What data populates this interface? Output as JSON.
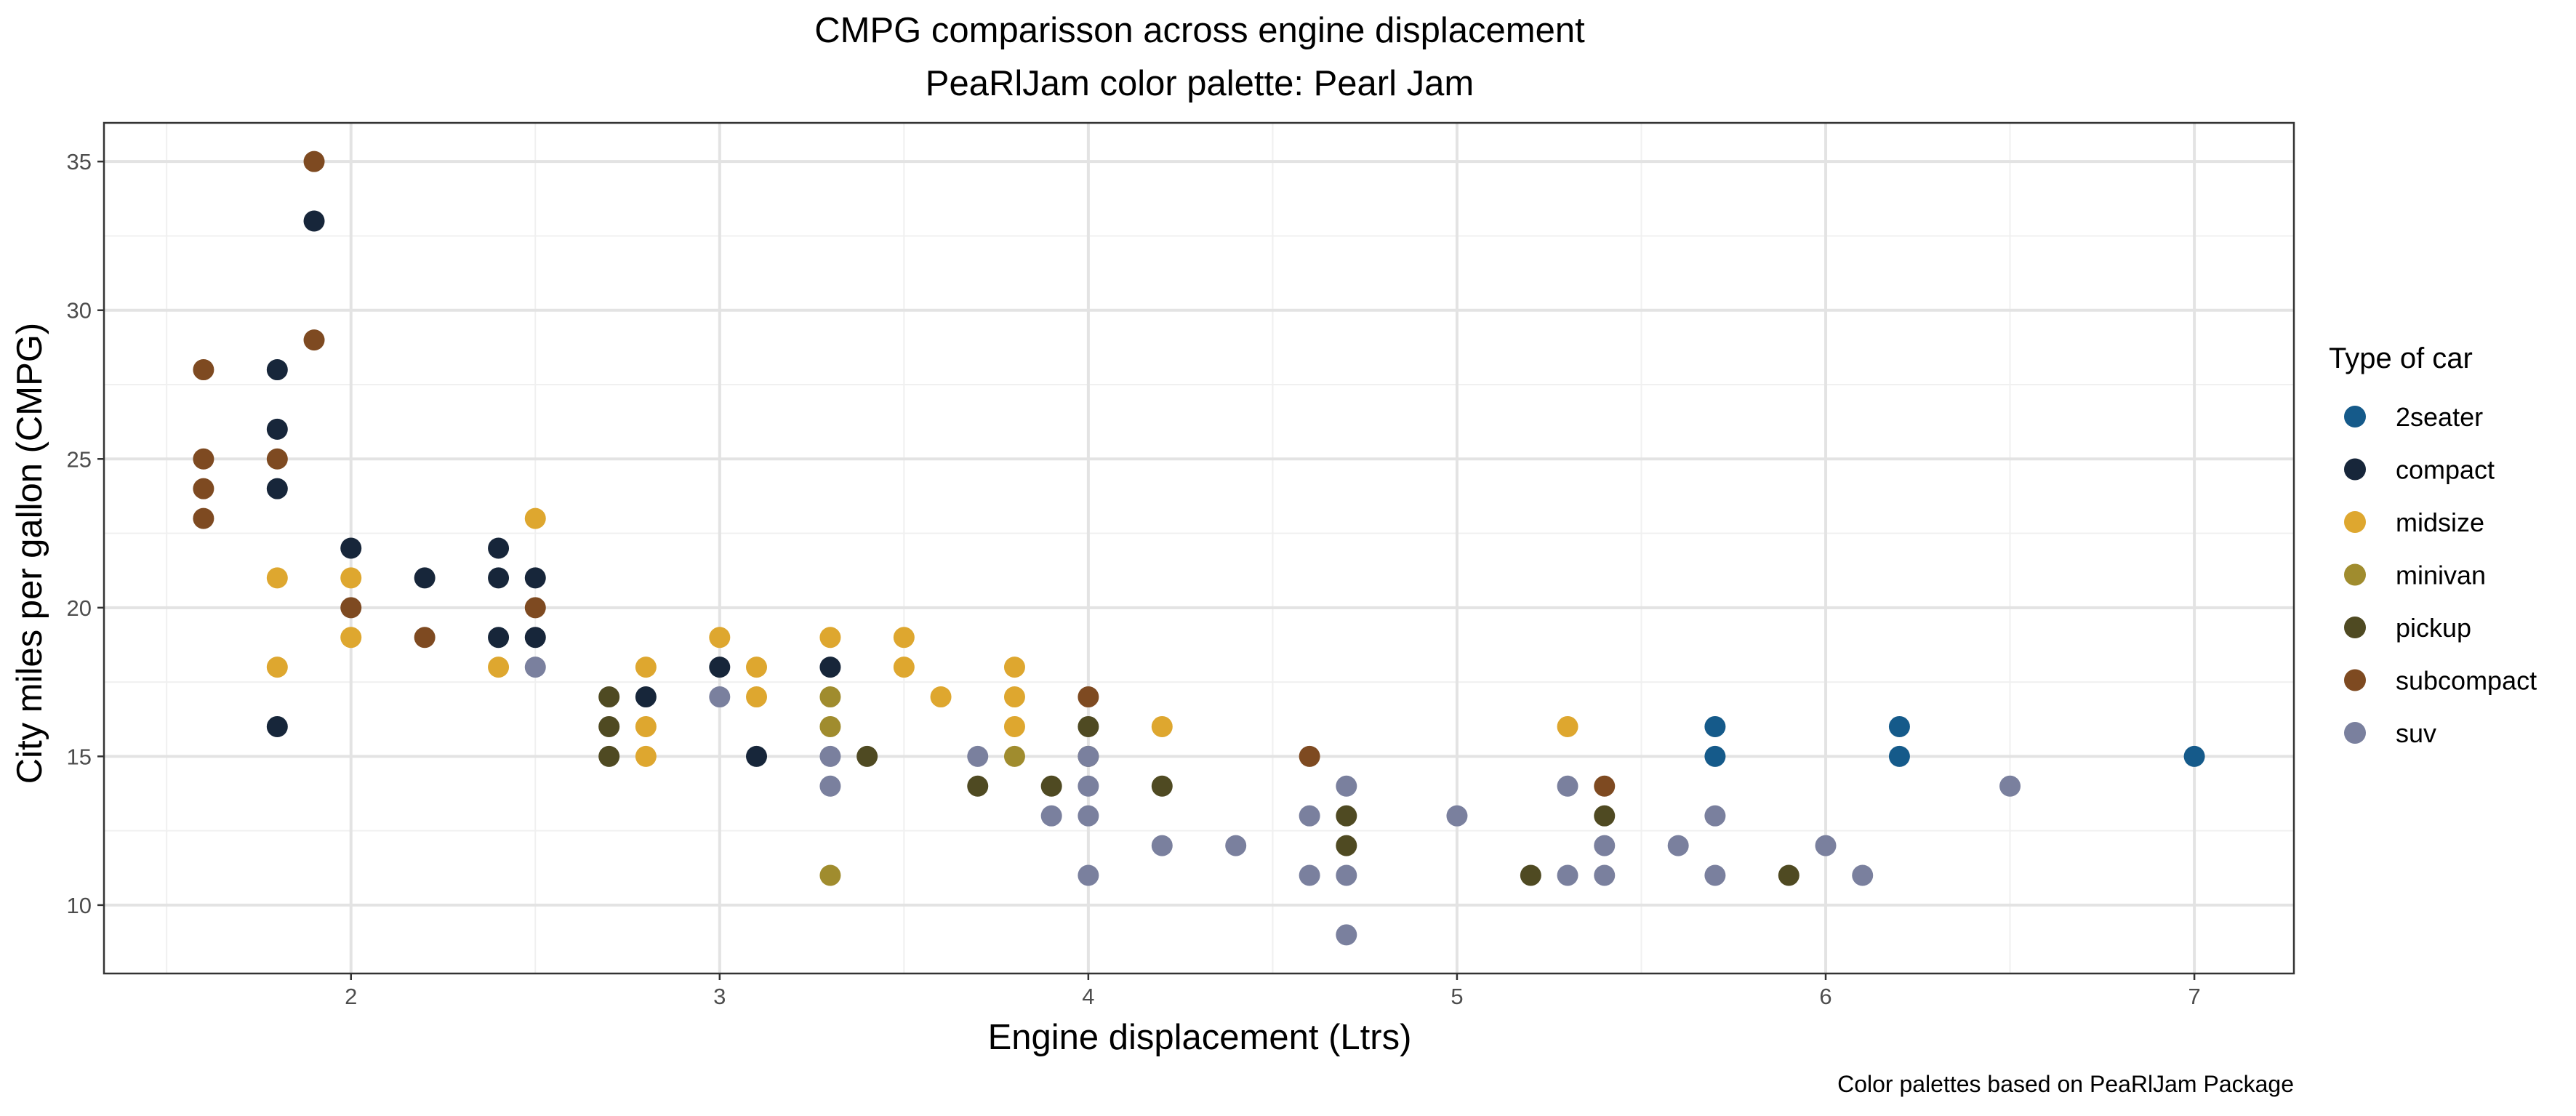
{
  "chart_data": {
    "type": "scatter",
    "title": "CMPG comparisson across engine displacement",
    "subtitle": "PeaRlJam color palette: Pearl Jam",
    "xlabel": "Engine displacement (Ltrs)",
    "ylabel": "City miles per gallon (CMPG)",
    "caption": "Color palettes based on PeaRlJam Package",
    "xlim": [
      1.33,
      7.27
    ],
    "ylim": [
      7.7,
      36.3
    ],
    "x_ticks": [
      2,
      3,
      4,
      5,
      6,
      7
    ],
    "y_ticks": [
      10,
      15,
      20,
      25,
      30,
      35
    ],
    "grid": true,
    "legend": {
      "title": "Type of car",
      "position": "right"
    },
    "series": [
      {
        "name": "2seater",
        "color": "#155A8A",
        "points": [
          [
            5.7,
            16
          ],
          [
            5.7,
            15
          ],
          [
            6.2,
            16
          ],
          [
            6.2,
            15
          ],
          [
            7.0,
            15
          ]
        ]
      },
      {
        "name": "compact",
        "color": "#17263A",
        "points": [
          [
            1.8,
            28
          ],
          [
            1.8,
            26
          ],
          [
            1.8,
            24
          ],
          [
            1.8,
            16
          ],
          [
            1.9,
            33
          ],
          [
            2.0,
            22
          ],
          [
            2.2,
            21
          ],
          [
            2.4,
            22
          ],
          [
            2.4,
            21
          ],
          [
            2.4,
            19
          ],
          [
            2.5,
            21
          ],
          [
            2.5,
            19
          ],
          [
            2.8,
            17
          ],
          [
            3.0,
            18
          ],
          [
            3.1,
            15
          ],
          [
            3.3,
            18
          ]
        ]
      },
      {
        "name": "midsize",
        "color": "#DEA72F",
        "points": [
          [
            1.8,
            21
          ],
          [
            1.8,
            18
          ],
          [
            2.0,
            21
          ],
          [
            2.0,
            19
          ],
          [
            2.4,
            18
          ],
          [
            2.5,
            23
          ],
          [
            2.8,
            18
          ],
          [
            2.8,
            16
          ],
          [
            2.8,
            15
          ],
          [
            3.0,
            19
          ],
          [
            3.1,
            18
          ],
          [
            3.1,
            17
          ],
          [
            3.3,
            19
          ],
          [
            3.5,
            19
          ],
          [
            3.5,
            18
          ],
          [
            3.6,
            17
          ],
          [
            3.8,
            18
          ],
          [
            3.8,
            17
          ],
          [
            3.8,
            16
          ],
          [
            4.2,
            16
          ],
          [
            5.3,
            16
          ]
        ]
      },
      {
        "name": "minivan",
        "color": "#A08C2E",
        "points": [
          [
            3.3,
            17
          ],
          [
            3.3,
            16
          ],
          [
            3.3,
            11
          ],
          [
            3.8,
            15
          ]
        ]
      },
      {
        "name": "pickup",
        "color": "#4F4A22",
        "points": [
          [
            2.7,
            17
          ],
          [
            2.7,
            16
          ],
          [
            2.7,
            15
          ],
          [
            3.4,
            15
          ],
          [
            3.7,
            14
          ],
          [
            3.9,
            14
          ],
          [
            4.0,
            16
          ],
          [
            4.0,
            15
          ],
          [
            4.2,
            14
          ],
          [
            4.7,
            13
          ],
          [
            4.7,
            12
          ],
          [
            5.2,
            11
          ],
          [
            5.4,
            13
          ],
          [
            5.9,
            11
          ]
        ]
      },
      {
        "name": "subcompact",
        "color": "#7E4A21",
        "points": [
          [
            1.6,
            28
          ],
          [
            1.6,
            25
          ],
          [
            1.6,
            24
          ],
          [
            1.6,
            23
          ],
          [
            1.8,
            25
          ],
          [
            1.9,
            35
          ],
          [
            1.9,
            29
          ],
          [
            2.0,
            20
          ],
          [
            2.2,
            19
          ],
          [
            2.5,
            20
          ],
          [
            4.0,
            17
          ],
          [
            4.6,
            15
          ],
          [
            5.4,
            14
          ]
        ]
      },
      {
        "name": "suv",
        "color": "#7A809E",
        "points": [
          [
            2.5,
            18
          ],
          [
            3.0,
            17
          ],
          [
            3.3,
            15
          ],
          [
            3.3,
            14
          ],
          [
            3.7,
            15
          ],
          [
            3.9,
            13
          ],
          [
            4.0,
            15
          ],
          [
            4.0,
            14
          ],
          [
            4.0,
            13
          ],
          [
            4.0,
            11
          ],
          [
            4.2,
            12
          ],
          [
            4.4,
            12
          ],
          [
            4.6,
            13
          ],
          [
            4.6,
            11
          ],
          [
            4.7,
            14
          ],
          [
            4.7,
            11
          ],
          [
            4.7,
            9
          ],
          [
            5.0,
            13
          ],
          [
            5.3,
            14
          ],
          [
            5.3,
            11
          ],
          [
            5.4,
            12
          ],
          [
            5.4,
            11
          ],
          [
            5.6,
            12
          ],
          [
            5.7,
            13
          ],
          [
            5.7,
            11
          ],
          [
            6.0,
            12
          ],
          [
            6.1,
            11
          ],
          [
            6.5,
            14
          ]
        ]
      }
    ]
  }
}
